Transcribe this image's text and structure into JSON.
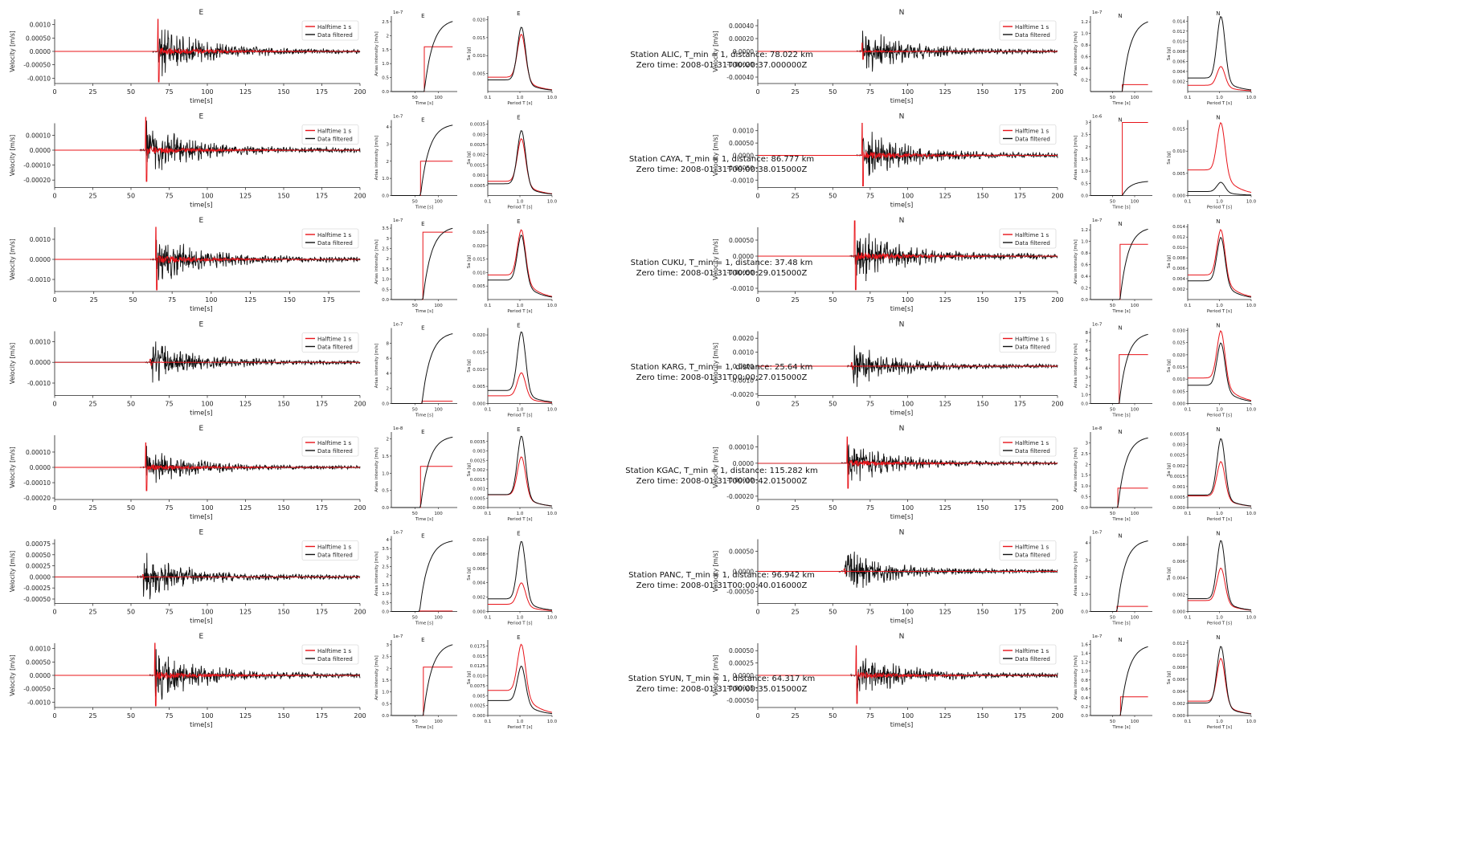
{
  "chart_data": {
    "type": "line",
    "legend_entries": [
      "Halftime 1 s",
      "Data filtered"
    ],
    "legend_placement": "top-right",
    "colors": {
      "halftime": "#e8141a",
      "data": "#111111"
    },
    "common": {
      "velocity_xlabel": "time[s]",
      "velocity_ylabel": "Velocity [m/s]",
      "arias_xlabel": "Time [s]",
      "arias_ylabel": "Arias intensity [m/s]",
      "sa_xlabel": "Period T [s]",
      "sa_ylabel": "Sa [g]",
      "station_prefix": "Station",
      "tmin_label": "T_min = 1,",
      "distance_label": "distance:",
      "zero_label": "Zero time:"
    },
    "stations": [
      {
        "name": "ALIC",
        "distance": "78.022 km",
        "zero_time": "2008-01-31T00:00:37.000000Z",
        "E": {
          "onset": 68,
          "amp": 0.0012,
          "ylim": [
            -0.0012,
            0.0012
          ],
          "yticks": [
            -0.001,
            -0.0005,
            0,
            0.0005,
            0.001
          ],
          "xmax": 200,
          "xticks": [
            0,
            25,
            50,
            75,
            100,
            125,
            150,
            175,
            200
          ],
          "arias_red": 1.6,
          "arias_black": 2.6,
          "arias_ylim": [
            0,
            2.7
          ],
          "arias_exp": "1e-7",
          "arias_xticks": [
            50,
            100
          ],
          "arias_yticks": [
            0,
            0.5,
            1.0,
            1.5,
            2.0,
            2.5
          ],
          "sa_red": 0.016,
          "sa_black": 0.018,
          "sa_ylim": [
            0,
            0.021
          ],
          "sa_yticks": [
            0.005,
            0.01,
            0.015,
            0.02
          ],
          "halftime_peak": 0.0012
        },
        "N": {
          "onset": 70,
          "amp": 0.00045,
          "ylim": [
            -0.0005,
            0.0005
          ],
          "yticks": [
            -0.0004,
            -0.0002,
            0,
            0.0002,
            0.0004
          ],
          "xmax": 200,
          "xticks": [
            0,
            25,
            50,
            75,
            100,
            125,
            150,
            175,
            200
          ],
          "arias_red": 0.12,
          "arias_black": 1.25,
          "arias_ylim": [
            0,
            1.3
          ],
          "arias_exp": "1e-7",
          "arias_xticks": [
            50,
            100
          ],
          "arias_yticks": [
            0.2,
            0.4,
            0.6,
            0.8,
            1.0,
            1.2
          ],
          "sa_red": 0.005,
          "sa_black": 0.015,
          "sa_ylim": [
            0,
            0.015
          ],
          "sa_yticks": [
            0.002,
            0.004,
            0.006,
            0.008,
            0.01,
            0.012,
            0.014
          ],
          "halftime_peak": 0.00013
        }
      },
      {
        "name": "CAYA",
        "distance": "86.777 km",
        "zero_time": "2008-01-31T00:00:38.015000Z",
        "E": {
          "onset": 60,
          "amp": 0.00022,
          "ylim": [
            -0.00025,
            0.00018
          ],
          "yticks": [
            -0.0002,
            -0.0001,
            0,
            0.0001
          ],
          "xmax": 200,
          "xticks": [
            0,
            25,
            50,
            75,
            100,
            125,
            150,
            175,
            200
          ],
          "arias_red": 2.0,
          "arias_black": 4.2,
          "arias_ylim": [
            0,
            4.4
          ],
          "arias_exp": "1e-7",
          "arias_xticks": [
            50,
            100
          ],
          "arias_yticks": [
            0,
            1,
            2,
            3,
            4
          ],
          "sa_red": 0.0028,
          "sa_black": 0.0032,
          "sa_ylim": [
            0,
            0.0037
          ],
          "sa_yticks": [
            0.0005,
            0.001,
            0.0015,
            0.002,
            0.0025,
            0.003,
            0.0035
          ],
          "halftime_peak": 0.00022
        },
        "N": {
          "onset": 70,
          "amp": 0.0013,
          "ylim": [
            -0.0013,
            0.0013
          ],
          "yticks": [
            -0.001,
            -0.0005,
            0,
            0.0005,
            0.001
          ],
          "xmax": 200,
          "xticks": [
            0,
            25,
            50,
            75,
            100,
            125,
            150,
            175,
            200
          ],
          "arias_red": 3.0,
          "arias_black": 0.6,
          "arias_ylim": [
            0,
            3.1
          ],
          "arias_exp": "1e-6",
          "arias_xticks": [
            50,
            100
          ],
          "arias_yticks": [
            0,
            0.5,
            1.0,
            1.5,
            2.0,
            2.5,
            3.0
          ],
          "sa_red": 0.0165,
          "sa_black": 0.003,
          "sa_ylim": [
            0,
            0.017
          ],
          "sa_yticks": [
            0,
            0.005,
            0.01,
            0.015
          ],
          "halftime_peak": 0.0013
        }
      },
      {
        "name": "CUKU",
        "distance": "37.48 km",
        "zero_time": "2008-01-31T00:00:29.015000Z",
        "E": {
          "onset": 65,
          "amp": 0.0016,
          "ylim": [
            -0.0016,
            0.0016
          ],
          "yticks": [
            -0.001,
            0,
            0.001
          ],
          "xmax": 195,
          "xticks": [
            0,
            25,
            50,
            75,
            100,
            125,
            150,
            175
          ],
          "arias_red": 3.3,
          "arias_black": 3.6,
          "arias_ylim": [
            0,
            3.7
          ],
          "arias_exp": "1e-7",
          "arias_xticks": [
            50,
            100
          ],
          "arias_yticks": [
            0,
            0.5,
            1.0,
            1.5,
            2.0,
            2.5,
            3.0,
            3.5
          ],
          "sa_red": 0.026,
          "sa_black": 0.024,
          "sa_ylim": [
            0,
            0.028
          ],
          "sa_yticks": [
            0.005,
            0.01,
            0.015,
            0.02,
            0.025
          ],
          "halftime_peak": 0.0016
        },
        "N": {
          "onset": 65,
          "amp": 0.0011,
          "ylim": [
            -0.0011,
            0.0009
          ],
          "yticks": [
            -0.001,
            -0.0005,
            0,
            0.0005
          ],
          "xmax": 200,
          "xticks": [
            0,
            25,
            50,
            75,
            100,
            125,
            150,
            175,
            200
          ],
          "arias_red": 0.95,
          "arias_black": 1.25,
          "arias_ylim": [
            0,
            1.3
          ],
          "arias_exp": "1e-7",
          "arias_xticks": [
            50,
            100
          ],
          "arias_yticks": [
            0,
            0.2,
            0.4,
            0.6,
            0.8,
            1.0,
            1.2
          ],
          "sa_red": 0.0135,
          "sa_black": 0.012,
          "sa_ylim": [
            0,
            0.0145
          ],
          "sa_yticks": [
            0.002,
            0.004,
            0.006,
            0.008,
            0.01,
            0.012,
            0.014
          ],
          "halftime_peak": 0.0011
        }
      },
      {
        "name": "KARG",
        "distance": "25.64 km",
        "zero_time": "2008-01-31T00:00:27.015000Z",
        "E": {
          "onset": 63,
          "amp": 0.0014,
          "ylim": [
            -0.0016,
            0.0015
          ],
          "yticks": [
            -0.001,
            0,
            0.001
          ],
          "xmax": 200,
          "xticks": [
            0,
            25,
            50,
            75,
            100,
            125,
            150,
            175,
            200
          ],
          "arias_red": 0.3,
          "arias_black": 9.5,
          "arias_ylim": [
            0,
            10
          ],
          "arias_exp": "1e-7",
          "arias_xticks": [
            50,
            100
          ],
          "arias_yticks": [
            0,
            2,
            4,
            6,
            8
          ],
          "sa_red": 0.009,
          "sa_black": 0.021,
          "sa_ylim": [
            0,
            0.022
          ],
          "sa_yticks": [
            0,
            0.005,
            0.01,
            0.015,
            0.02
          ],
          "halftime_peak": 0.00015
        },
        "N": {
          "onset": 63,
          "amp": 0.0019,
          "ylim": [
            -0.0021,
            0.0025
          ],
          "yticks": [
            -0.002,
            -0.001,
            0,
            0.001,
            0.002
          ],
          "xmax": 200,
          "xticks": [
            0,
            25,
            50,
            75,
            100,
            125,
            150,
            175,
            200
          ],
          "arias_red": 5.5,
          "arias_black": 8.0,
          "arias_ylim": [
            0,
            8.5
          ],
          "arias_exp": "1e-7",
          "arias_xticks": [
            50,
            100
          ],
          "arias_yticks": [
            0,
            1,
            2,
            3,
            4,
            5,
            6,
            7,
            8
          ],
          "sa_red": 0.03,
          "sa_black": 0.025,
          "sa_ylim": [
            0,
            0.031
          ],
          "sa_yticks": [
            0,
            0.005,
            0.01,
            0.015,
            0.02,
            0.025,
            0.03
          ],
          "halftime_peak": 0.00025
        }
      },
      {
        "name": "KGAC",
        "distance": "115.282 km",
        "zero_time": "2008-01-31T00:00:42.015000Z",
        "E": {
          "onset": 60,
          "amp": 0.00016,
          "ylim": [
            -0.00021,
            0.00021
          ],
          "yticks": [
            -0.0002,
            -0.0001,
            0,
            0.0001
          ],
          "xmax": 200,
          "xticks": [
            0,
            25,
            50,
            75,
            100,
            125,
            150,
            175,
            200
          ],
          "arias_red": 1.2,
          "arias_black": 2.1,
          "arias_ylim": [
            0,
            2.2
          ],
          "arias_exp": "1e-8",
          "arias_xticks": [
            50,
            100
          ],
          "arias_yticks": [
            0,
            0.5,
            1.0,
            1.5,
            2.0
          ],
          "sa_red": 0.0027,
          "sa_black": 0.0038,
          "sa_ylim": [
            0,
            0.004
          ],
          "sa_yticks": [
            0,
            0.0005,
            0.001,
            0.0015,
            0.002,
            0.0025,
            0.003,
            0.0035
          ],
          "halftime_peak": 0.00016
        },
        "N": {
          "onset": 60,
          "amp": 0.00016,
          "ylim": [
            -0.00022,
            0.00017
          ],
          "yticks": [
            -0.0002,
            -0.0001,
            0,
            0.0001
          ],
          "xmax": 200,
          "xticks": [
            0,
            25,
            50,
            75,
            100,
            125,
            150,
            175,
            200
          ],
          "arias_red": 0.9,
          "arias_black": 3.3,
          "arias_ylim": [
            0,
            3.5
          ],
          "arias_exp": "1e-8",
          "arias_xticks": [
            50,
            100
          ],
          "arias_yticks": [
            0,
            0.5,
            1.0,
            1.5,
            2.0,
            2.5,
            3.0
          ],
          "sa_red": 0.0022,
          "sa_black": 0.0033,
          "sa_ylim": [
            0,
            0.0036
          ],
          "sa_yticks": [
            0,
            0.0005,
            0.001,
            0.0015,
            0.002,
            0.0025,
            0.003,
            0.0035
          ],
          "halftime_peak": 0.00016
        }
      },
      {
        "name": "PANC",
        "distance": "96.942 km",
        "zero_time": "2008-01-31T00:00:40.016000Z",
        "E": {
          "onset": 58,
          "amp": 0.00065,
          "ylim": [
            -0.0006,
            0.00085
          ],
          "yticks": [
            -0.0005,
            -0.00025,
            0,
            0.00025,
            0.0005,
            0.00075
          ],
          "xmax": 200,
          "xticks": [
            0,
            25,
            50,
            75,
            100,
            125,
            150,
            175,
            200
          ],
          "arias_red": 0.03,
          "arias_black": 4.0,
          "arias_ylim": [
            0,
            4.2
          ],
          "arias_exp": "1e-7",
          "arias_xticks": [
            50,
            100
          ],
          "arias_yticks": [
            0,
            0.5,
            1.0,
            1.5,
            2.0,
            2.5,
            3.0,
            3.5,
            4.0
          ],
          "sa_red": 0.004,
          "sa_black": 0.0098,
          "sa_ylim": [
            0,
            0.0105
          ],
          "sa_yticks": [
            0,
            0.002,
            0.004,
            0.006,
            0.008,
            0.01
          ],
          "halftime_peak": 5e-05
        },
        "N": {
          "onset": 58,
          "amp": 0.0007,
          "ylim": [
            -0.0008,
            0.0008
          ],
          "yticks": [
            -0.0005,
            0,
            0.0005
          ],
          "xmax": 200,
          "xticks": [
            0,
            25,
            50,
            75,
            100,
            125,
            150,
            175,
            200
          ],
          "arias_red": 0.3,
          "arias_black": 4.2,
          "arias_ylim": [
            0,
            4.4
          ],
          "arias_exp": "1e-7",
          "arias_xticks": [
            50,
            100
          ],
          "arias_yticks": [
            0,
            1,
            2,
            3,
            4
          ],
          "sa_red": 0.0052,
          "sa_black": 0.0085,
          "sa_ylim": [
            0,
            0.009
          ],
          "sa_yticks": [
            0,
            0.002,
            0.004,
            0.006,
            0.008
          ],
          "halftime_peak": 6e-05
        }
      },
      {
        "name": "SYUN",
        "distance": "64.317 km",
        "zero_time": "2008-01-31T00:00:35.015000Z",
        "E": {
          "onset": 66,
          "amp": 0.0012,
          "ylim": [
            -0.0012,
            0.0012
          ],
          "yticks": [
            -0.001,
            -0.0005,
            0,
            0.0005,
            0.001
          ],
          "xmax": 200,
          "xticks": [
            0,
            25,
            50,
            75,
            100,
            125,
            150,
            175,
            200
          ],
          "arias_red": 2.05,
          "arias_black": 3.1,
          "arias_ylim": [
            0,
            3.2
          ],
          "arias_exp": "1e-7",
          "arias_xticks": [
            50,
            100
          ],
          "arias_yticks": [
            0,
            0.5,
            1.0,
            1.5,
            2.0,
            2.5,
            3.0
          ],
          "sa_red": 0.018,
          "sa_black": 0.0125,
          "sa_ylim": [
            0,
            0.019
          ],
          "sa_yticks": [
            0,
            0.0025,
            0.005,
            0.0075,
            0.01,
            0.0125,
            0.015,
            0.0175
          ],
          "halftime_peak": 0.0012
        },
        "N": {
          "onset": 66,
          "amp": 0.0006,
          "ylim": [
            -0.00065,
            0.00065
          ],
          "yticks": [
            -0.0005,
            -0.00025,
            0,
            0.00025,
            0.0005
          ],
          "xmax": 200,
          "xticks": [
            0,
            25,
            50,
            75,
            100,
            125,
            150,
            175,
            200
          ],
          "arias_red": 0.42,
          "arias_black": 1.6,
          "arias_ylim": [
            0,
            1.7
          ],
          "arias_exp": "1e-7",
          "arias_xticks": [
            50,
            100
          ],
          "arias_yticks": [
            0,
            0.2,
            0.4,
            0.6,
            0.8,
            1.0,
            1.2,
            1.4,
            1.6
          ],
          "sa_red": 0.0095,
          "sa_black": 0.0115,
          "sa_ylim": [
            0,
            0.0125
          ],
          "sa_yticks": [
            0,
            0.002,
            0.004,
            0.006,
            0.008,
            0.01,
            0.012
          ],
          "halftime_peak": 0.0006
        }
      }
    ]
  }
}
